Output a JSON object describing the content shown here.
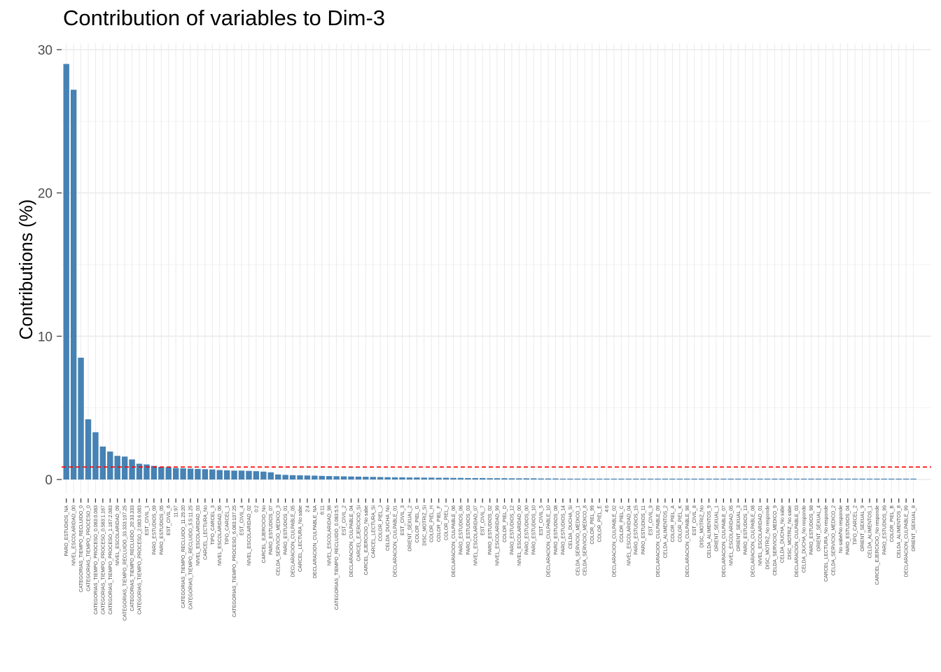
{
  "chart_data": {
    "type": "bar",
    "title": "Contribution of variables to Dim-3",
    "xlabel": "",
    "ylabel": "Contributions (%)",
    "ylim": [
      0,
      30
    ],
    "yticks": [
      0,
      10,
      20,
      30
    ],
    "reference_line": {
      "value": 0.87,
      "color": "#ff0000",
      "style": "dashed"
    },
    "bar_color": "#4682b4",
    "grid": true,
    "categories": [
      "PARO_ESTUDIOS_NA",
      "NIVEL_ESCOLARIDAD_00",
      "CATEGORIAS_TIEMPO_RECLUIDO_0",
      "CATEGORIAS_TIEMPO_PROCESO_0",
      "CATEGORIAS_TIEMPO_PROCESO_0.083:0.083",
      "CATEGORIAS_TIEMPO_PROCESO_0.583:1.167",
      "CATEGORIAS_TIEMPO_PROCESO_1.167:2.083",
      "NIVEL_ESCOLARIDAD_09",
      "CATEGORIAS_TIEMPO_RECLUIDO_33.333:107.25",
      "CATEGORIAS_TIEMPO_RECLUIDO_20:33.333",
      "CATEGORIAS_TIEMPO_PROCESO_2.083:6.083",
      "EST_CIVIL_1",
      "PARO_ESTUDIOS_09",
      "PARO_ESTUDIOS_05",
      "EST_CIVIL_6",
      "11:97",
      "CATEGORIAS_TIEMPO_RECLUIDO_11.25:20",
      "CATEGORIAS_TIEMPO_RECLUIDO_5.5:11.25",
      "NIVEL_ESCOLARIDAD_03",
      "CARCEL_LECTURA_No",
      "TIPO_CARCEL_3",
      "NIVEL_ESCOLARIDAD_06",
      "TIPO_CARCEL_1",
      "CATEGORIAS_TIEMPO_PROCESO_6.083:107.25",
      "EST_CIVIL_4",
      "NIVEL_ESCOLARIDAD_02",
      "0:2",
      "CARCEL_EJERCICIO_No",
      "PARO_ESTUDIOS_07",
      "CELDA_SERVICIO_MEDICO_3",
      "PARO_ESTUDIOS_01",
      "DECLARACION_CULPABLE_05",
      "CARCEL_LECTURA_No sabe",
      "2:4",
      "DECLARACION_CULPABLE_NA",
      "6:11",
      "NIVEL_ESCOLARIDAD_98",
      "CATEGORIAS_TIEMPO_RECLUIDO_0.083:5.5",
      "EST_CIVIL_2",
      "DECLARACION_CULPABLE_04",
      "CARCEL_EJERCICIO_Si",
      "CARCEL_EJERCICIO_No sabe",
      "CARCEL_LECTURA_Si",
      "COLOR_PIEL_J",
      "CELDA_DUCHA_No",
      "DECLARACION_CULPABLE_01",
      "EST_CIVIL_3",
      "ORIENT_SEXUAL_2",
      "COLOR_PIEL_G",
      "DISC_MOTRIZ_Si",
      "COLOR_PIEL_H",
      "COLOR_PIEL_F",
      "COLOR_PIEL_I",
      "DECLARACION_CULPABLE_06",
      "PARO_ESTUDIOS_06",
      "PARO_ESTUDIOS_03",
      "NIVEL_ESCOLARIDAD_07",
      "EST_CIVIL_7",
      "PARO_ESTUDIOS_02",
      "NIVEL_ESCOLARIDAD_99",
      "COLOR_PIEL_D",
      "PARO_ESTUDIOS_12",
      "NIVEL_ESCOLARIDAD_00",
      "PARO_ESTUDIOS_00",
      "PARO_ESTUDIOS_10",
      "EST_CIVIL_5",
      "DECLARACION_CULPABLE_10",
      "PARO_ESTUDIOS_08",
      "PARO_ESTUDIOS_14",
      "CELDA_DUCHA_Si",
      "CELDA_SERVICIO_MEDICO_1",
      "CELDA_SERVICIO_MEDICO_8",
      "COLOR_PIEL_99",
      "COLOR_PIEL_E",
      "4:6",
      "DECLARACION_CULPABLE_02",
      "COLOR_PIEL_C",
      "NIVEL_ESCOLARIDAD_04",
      "PARO_ESTUDIOS_15",
      "PARO_ESTUDIOS_11",
      "EST_CIVIL_9",
      "DECLARACION_CULPABLE_09",
      "CELDA_ALIMENTOS_2",
      "COLOR_PIEL_A",
      "COLOR_PIEL_K",
      "DECLARACION_CULPABLE_98",
      "EST_CIVIL_8",
      "DISC_MOTRIZ_No",
      "CELDA_ALIMENTOS_9",
      "ORIENT_SEXUAL_1",
      "DECLARACION_CULPABLE_07",
      "NIVEL_ESCOLARIDAD_05",
      "ORIENT_SEXUAL_3",
      "PARO_ESTUDIOS_13",
      "DECLARACION_CULPABLE_08",
      "NIVEL_ESCOLARIDAD_01",
      "DISC_MOTRIZ_No responde",
      "CELDA_SERVICIO_MEDICO_9",
      "CELDA_DUCHA_No sabe",
      "DISC_MOTRIZ_No sabe",
      "DECLARACION_CULPABLE_03",
      "CELDA_DUCHA_No responde",
      "PARO_ESTUDIOS_98",
      "ORIENT_SEXUAL_4",
      "CARCEL_LECTURA_No responde",
      "CELDA_SERVICIO_MEDICO_2",
      "No sabe/No responde",
      "PARO_ESTUDIOS_04",
      "TIPO_CARCEL_2",
      "ORIENT_SEXUAL_9",
      "CELDA_ALIMENTOS_1",
      "CARCEL_EJERCICIO_No responde",
      "PARO_ESTUDIOS_99",
      "COLOR_PIEL_B",
      "CELDA_ALIMENTOS_8",
      "DECLARACION_CULPABLE_99",
      "ORIENT_SEXUAL_8"
    ],
    "values": [
      29.0,
      27.2,
      8.5,
      4.2,
      3.3,
      2.3,
      1.95,
      1.65,
      1.6,
      1.4,
      1.1,
      1.05,
      0.95,
      0.88,
      0.85,
      0.8,
      0.78,
      0.76,
      0.74,
      0.72,
      0.7,
      0.66,
      0.64,
      0.62,
      0.62,
      0.6,
      0.58,
      0.55,
      0.5,
      0.35,
      0.32,
      0.3,
      0.29,
      0.28,
      0.27,
      0.25,
      0.24,
      0.23,
      0.22,
      0.21,
      0.2,
      0.19,
      0.18,
      0.17,
      0.16,
      0.15,
      0.15,
      0.14,
      0.14,
      0.13,
      0.13,
      0.12,
      0.12,
      0.11,
      0.11,
      0.1,
      0.1,
      0.1,
      0.09,
      0.09,
      0.09,
      0.08,
      0.08,
      0.08,
      0.08,
      0.07,
      0.07,
      0.07,
      0.06,
      0.06,
      0.05,
      0.05,
      0.04,
      0.04,
      0.04,
      0.03,
      0.03,
      0.03,
      0.03,
      0.02,
      0.02,
      0.02,
      0.02,
      0.02,
      0.02,
      0.02,
      0.01,
      0.01,
      0.01,
      0.01,
      0.01,
      0.01,
      0.01,
      0.01,
      0.01,
      0.01,
      0.01,
      0.01,
      0.01,
      0.01,
      0.01,
      0.01,
      0.01,
      0.01,
      0.01,
      0.01,
      0.01,
      0.01,
      0.01,
      0.01,
      0.01,
      0.01,
      0.01,
      0.01,
      0.01,
      0.01,
      0.01
    ]
  }
}
